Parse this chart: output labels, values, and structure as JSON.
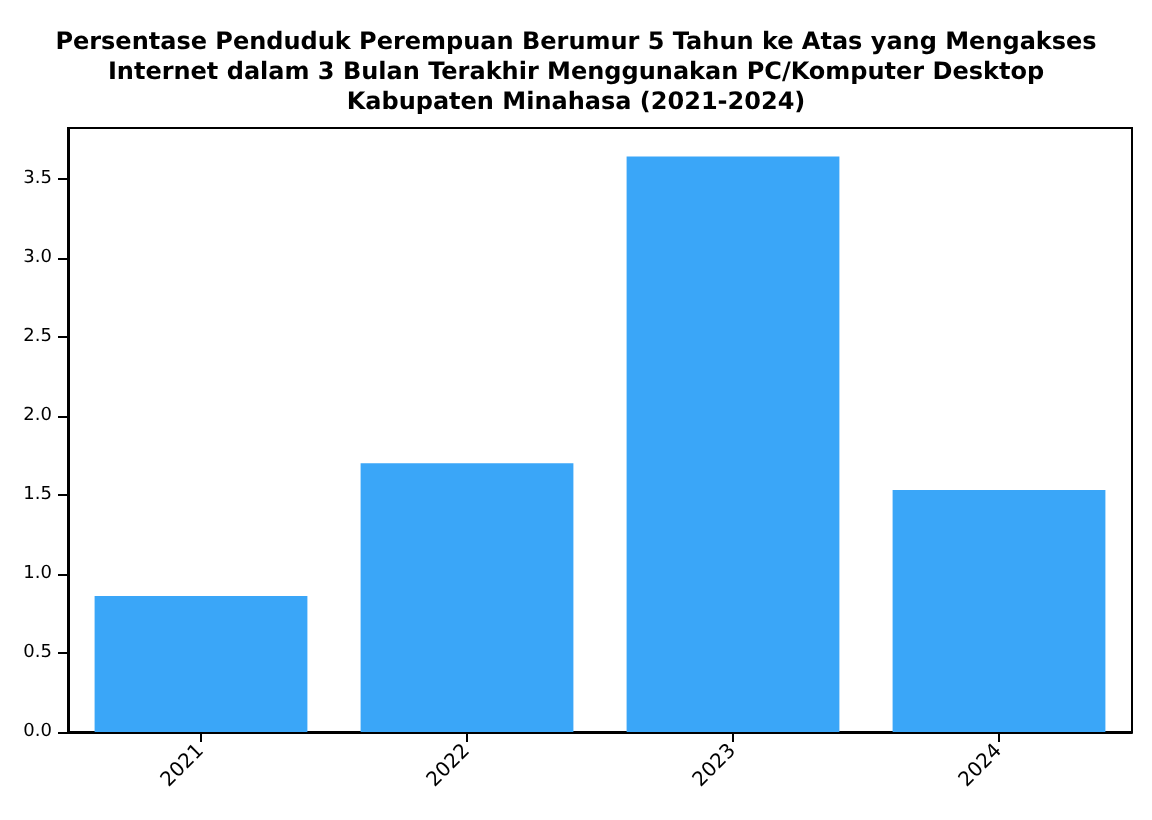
{
  "chart_data": {
    "type": "bar",
    "title": "Persentase Penduduk Perempuan Berumur 5 Tahun ke Atas yang Mengakses\nInternet dalam 3 Bulan Terakhir Menggunakan PC/Komputer Desktop\nKabupaten Minahasa (2021-2024)",
    "categories": [
      "2021",
      "2022",
      "2023",
      "2024"
    ],
    "values": [
      0.86,
      1.7,
      3.64,
      1.53
    ],
    "color": "#3aa6f8",
    "ylim": [
      0,
      3.82
    ],
    "yticks": [
      {
        "value": 0,
        "label": "0.0"
      },
      {
        "value": 0.5,
        "label": "0.5"
      },
      {
        "value": 1,
        "label": "1.0"
      },
      {
        "value": 1.5,
        "label": "1.5"
      },
      {
        "value": 2,
        "label": "2.0"
      },
      {
        "value": 2.5,
        "label": "2.5"
      },
      {
        "value": 3,
        "label": "3.0"
      },
      {
        "value": 3.5,
        "label": "3.5"
      }
    ],
    "grid": false
  }
}
